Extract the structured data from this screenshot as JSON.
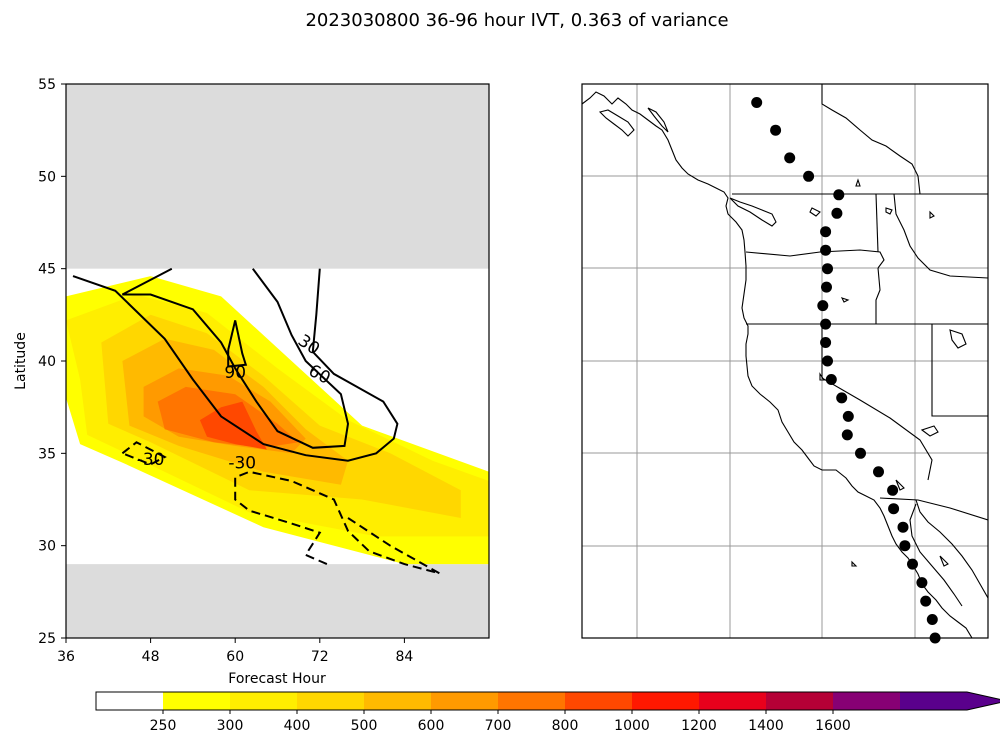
{
  "figure": {
    "title": "2023030800 36-96 hour IVT, 0.363 of variance"
  },
  "chart_data": [
    {
      "type": "heatmap",
      "name": "ivt-composite",
      "xlabel": "Forecast Hour",
      "ylabel": "Latitude",
      "xlim": [
        36,
        96
      ],
      "ylim": [
        25,
        55
      ],
      "xticks": [
        36,
        48,
        60,
        72,
        84
      ],
      "yticks": [
        25,
        30,
        35,
        40,
        45,
        50,
        55
      ],
      "no_data_lat_bands": [
        [
          25,
          29
        ],
        [
          45,
          55
        ]
      ],
      "fill_levels": [
        {
          "threshold": 250,
          "color": "#ffff00",
          "polygon": [
            [
              36,
              43.5
            ],
            [
              48,
              44.6
            ],
            [
              58,
              43.5
            ],
            [
              68,
              40
            ],
            [
              78,
              36.5
            ],
            [
              96,
              34
            ],
            [
              96,
              29
            ],
            [
              84,
              29
            ],
            [
              64,
              31
            ],
            [
              44,
              34.5
            ],
            [
              38,
              35.5
            ],
            [
              36,
              38
            ]
          ]
        },
        {
          "threshold": 300,
          "color": "#ffee00",
          "polygon": [
            [
              36,
              42.2
            ],
            [
              46,
              43.6
            ],
            [
              56,
              42.6
            ],
            [
              66,
              39.6
            ],
            [
              76,
              36.8
            ],
            [
              88,
              34.6
            ],
            [
              96,
              33.5
            ],
            [
              96,
              30.5
            ],
            [
              80,
              30.5
            ],
            [
              62,
              31.8
            ],
            [
              44,
              35.1
            ],
            [
              39,
              36
            ],
            [
              38,
              39
            ]
          ]
        },
        {
          "threshold": 400,
          "color": "#ffd700",
          "polygon": [
            [
              41,
              41
            ],
            [
              48,
              42.5
            ],
            [
              56,
              41.5
            ],
            [
              64,
              39.2
            ],
            [
              72,
              36.5
            ],
            [
              82,
              35
            ],
            [
              92,
              33
            ],
            [
              92,
              31.5
            ],
            [
              78,
              32.5
            ],
            [
              62,
              33
            ],
            [
              48,
              35.6
            ],
            [
              42,
              36.6
            ]
          ]
        },
        {
          "threshold": 500,
          "color": "#ffba00",
          "polygon": [
            [
              44,
              40
            ],
            [
              50,
              41.2
            ],
            [
              57,
              40.6
            ],
            [
              64,
              38.6
            ],
            [
              70,
              36.3
            ],
            [
              76,
              34.6
            ],
            [
              75,
              33.3
            ],
            [
              64,
              34
            ],
            [
              52,
              35.4
            ],
            [
              45,
              36.5
            ]
          ]
        },
        {
          "threshold": 600,
          "color": "#ff9a00",
          "polygon": [
            [
              47,
              38.6
            ],
            [
              52,
              39.6
            ],
            [
              59,
              39.2
            ],
            [
              65,
              37.8
            ],
            [
              70,
              35.8
            ],
            [
              68,
              35
            ],
            [
              60,
              35.4
            ],
            [
              52,
              35.9
            ],
            [
              47,
              37
            ]
          ]
        },
        {
          "threshold": 700,
          "color": "#ff7500",
          "polygon": [
            [
              49,
              37.8
            ],
            [
              53,
              38.6
            ],
            [
              60,
              38.2
            ],
            [
              66,
              36.6
            ],
            [
              69,
              35.6
            ],
            [
              64,
              35.3
            ],
            [
              57,
              35.6
            ],
            [
              50,
              36.3
            ]
          ]
        },
        {
          "threshold": 800,
          "color": "#ff4800",
          "polygon": [
            [
              55,
              36.8
            ],
            [
              58,
              37.5
            ],
            [
              61,
              37.8
            ],
            [
              63,
              36.2
            ],
            [
              64.5,
              35.2
            ],
            [
              60,
              35.5
            ],
            [
              56,
              35.9
            ]
          ]
        }
      ],
      "contours": [
        {
          "value": 30,
          "label": "30",
          "style": "solid",
          "points": [
            [
              72,
              45
            ],
            [
              71.5,
              42.5
            ],
            [
              71,
              40.5
            ],
            [
              74,
              39.3
            ],
            [
              81,
              37.8
            ],
            [
              83,
              36.6
            ],
            [
              82.5,
              35.8
            ],
            [
              80,
              35
            ],
            [
              76,
              34.6
            ],
            [
              70,
              34.9
            ],
            [
              64,
              35.5
            ],
            [
              58,
              37
            ],
            [
              54,
              39
            ],
            [
              50,
              41.2
            ],
            [
              43,
              43.8
            ],
            [
              37,
              44.6
            ]
          ],
          "label_at": [
            70.5,
            40.9
          ],
          "label_angle": 35
        },
        {
          "value": 60,
          "label": "60",
          "style": "solid",
          "points": [
            [
              62.5,
              45
            ],
            [
              66,
              43.2
            ],
            [
              68,
              41.4
            ],
            [
              70,
              40
            ],
            [
              75,
              38.2
            ],
            [
              76,
              36.6
            ],
            [
              75.5,
              35.4
            ],
            [
              71,
              35.3
            ],
            [
              66,
              36.2
            ],
            [
              63,
              37.8
            ],
            [
              60,
              39.6
            ],
            [
              58,
              41
            ],
            [
              54,
              42.8
            ],
            [
              48,
              43.6
            ],
            [
              44,
              43.6
            ],
            [
              49,
              44.6
            ],
            [
              51,
              45
            ]
          ],
          "label_at": [
            72,
            39.3
          ],
          "label_angle": 28
        },
        {
          "value": 90,
          "label": "90",
          "style": "solid",
          "points": [
            [
              59,
              40.6
            ],
            [
              60,
              42.2
            ],
            [
              61,
              40.4
            ],
            [
              61.5,
              39.8
            ],
            [
              59,
              39.7
            ],
            [
              59,
              40.6
            ]
          ],
          "label_at": [
            60,
            39.4
          ],
          "label_angle": 0
        },
        {
          "value": -30,
          "label": "-30",
          "style": "dashed",
          "points": [
            [
              44,
              35
            ],
            [
              46,
              35.6
            ],
            [
              48,
              35.2
            ],
            [
              50,
              34.8
            ],
            [
              48,
              34.4
            ],
            [
              44,
              35
            ]
          ],
          "label_at": [
            48,
            34.7
          ],
          "label_angle": 0
        },
        {
          "value": -30,
          "label": "-30",
          "style": "dashed",
          "points": [
            [
              73,
              29
            ],
            [
              70,
              29.5
            ],
            [
              72,
              30.7
            ],
            [
              68,
              31.2
            ],
            [
              62,
              31.9
            ],
            [
              60,
              32.5
            ],
            [
              60,
              33.7
            ],
            [
              62,
              34
            ],
            [
              68,
              33.5
            ],
            [
              74,
              32.5
            ],
            [
              76,
              30.8
            ],
            [
              79,
              29.7
            ],
            [
              84,
              29
            ],
            [
              89,
              28.5
            ],
            [
              82,
              30
            ],
            [
              76,
              31.5
            ]
          ],
          "label_at": [
            61,
            34.5
          ],
          "label_angle": 0
        }
      ]
    },
    {
      "type": "map",
      "name": "west-coast-map",
      "lon_range": [
        -150,
        -107
      ],
      "lat_range": [
        25,
        55
      ],
      "gridlines": true,
      "points": [
        [
          -131.5,
          54
        ],
        [
          -129.5,
          52.5
        ],
        [
          -128,
          51
        ],
        [
          -126,
          50
        ],
        [
          -122.8,
          49
        ],
        [
          -123,
          48
        ],
        [
          -124.2,
          47
        ],
        [
          -124.2,
          46
        ],
        [
          -124,
          45
        ],
        [
          -124.1,
          44
        ],
        [
          -124.5,
          43
        ],
        [
          -124.2,
          42
        ],
        [
          -124.2,
          41
        ],
        [
          -124,
          40
        ],
        [
          -123.6,
          39
        ],
        [
          -122.5,
          38
        ],
        [
          -121.8,
          37
        ],
        [
          -121.9,
          36
        ],
        [
          -120.5,
          35
        ],
        [
          -118.6,
          34
        ],
        [
          -117.1,
          33
        ],
        [
          -117,
          32
        ],
        [
          -116,
          31
        ],
        [
          -115.8,
          30
        ],
        [
          -115,
          29
        ],
        [
          -114,
          28
        ],
        [
          -113.6,
          27
        ],
        [
          -112.9,
          26
        ],
        [
          -112.6,
          25
        ]
      ]
    }
  ],
  "colorbar": {
    "labels": [
      "250",
      "300",
      "400",
      "500",
      "600",
      "700",
      "800",
      "1000",
      "1200",
      "1400",
      "1600"
    ],
    "colors": [
      "#ffffff",
      "#ffff00",
      "#ffee00",
      "#ffd700",
      "#ffba00",
      "#ff9a00",
      "#ff7500",
      "#ff4800",
      "#ff1800",
      "#e8001c",
      "#b50036",
      "#870074",
      "#5a008c"
    ]
  }
}
